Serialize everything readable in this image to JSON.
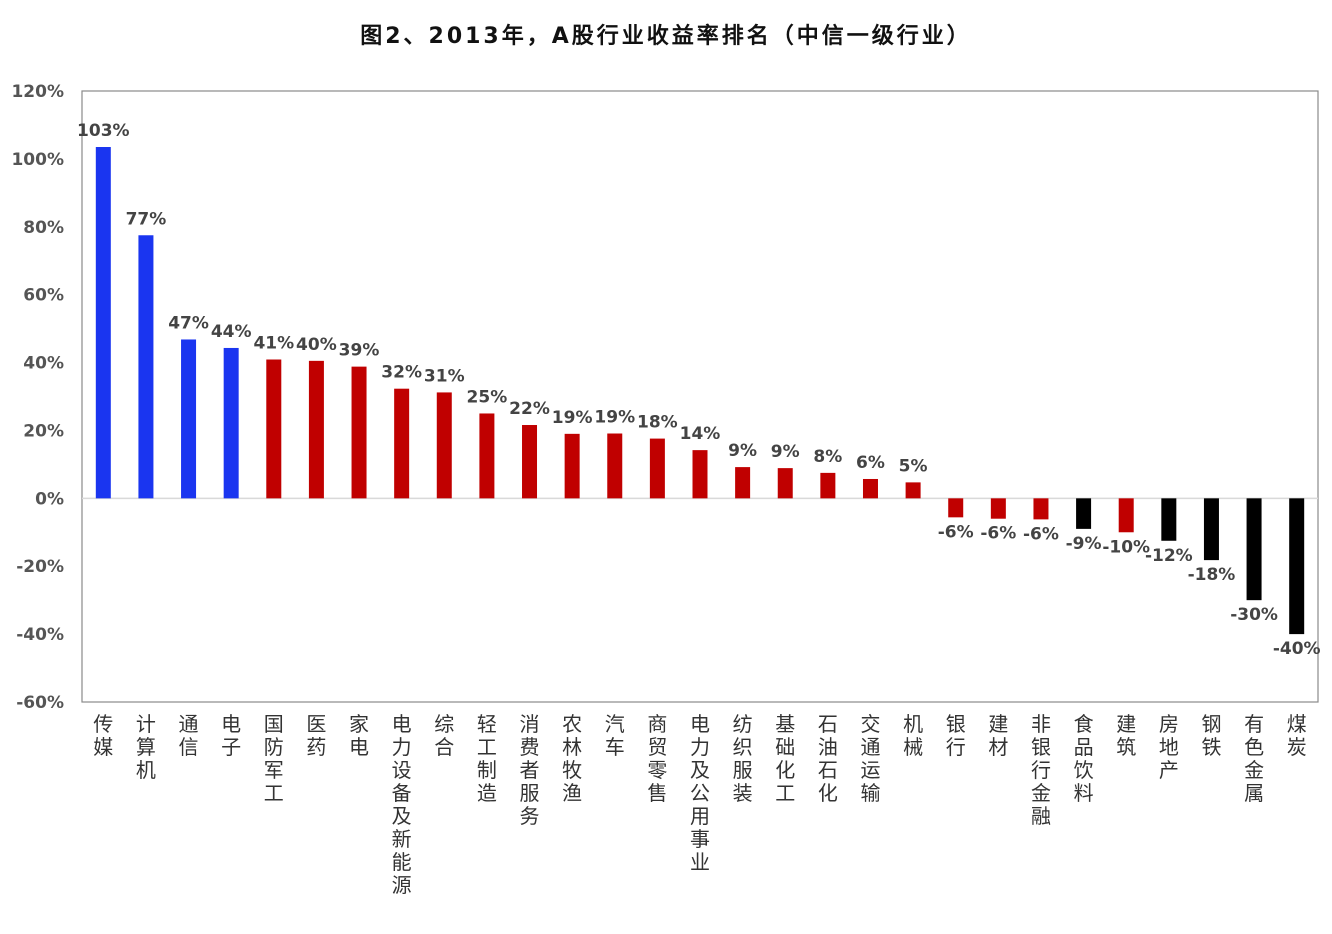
{
  "chart_data": {
    "type": "bar",
    "title": "图2、2013年，A股行业收益率排名（中信一级行业）",
    "xlabel": "",
    "ylabel": "",
    "ylim": [
      -60,
      120
    ],
    "ytick_step": 20,
    "y_unit": "%",
    "grid": false,
    "legend": "none",
    "colors": {
      "blue": "#1a35f0",
      "red": "#c00000",
      "black": "#000000"
    },
    "categories": [
      "传媒",
      "计算机",
      "通信",
      "电子",
      "国防军工",
      "医药",
      "家电",
      "电力设备及新能源",
      "综合",
      "轻工制造",
      "消费者服务",
      "农林牧渔",
      "汽车",
      "商贸零售",
      "电力及公用事业",
      "纺织服装",
      "基础化工",
      "石油石化",
      "交通运输",
      "机械",
      "银行",
      "建材",
      "非银行金融",
      "食品饮料",
      "建筑",
      "房地产",
      "钢铁",
      "有色金属",
      "煤炭"
    ],
    "values": [
      103.5,
      77.5,
      46.8,
      44.3,
      40.9,
      40.5,
      38.8,
      32.3,
      31.2,
      25.0,
      21.6,
      19.0,
      19.1,
      17.6,
      14.2,
      9.2,
      8.9,
      7.5,
      5.7,
      4.7,
      -5.6,
      -6.0,
      -6.2,
      -9.0,
      -10.0,
      -12.5,
      -18.2,
      -30.0,
      -40.0
    ],
    "value_labels": [
      "103%",
      "77%",
      "47%",
      "44%",
      "41%",
      "40%",
      "39%",
      "32%",
      "31%",
      "25%",
      "22%",
      "19%",
      "19%",
      "18%",
      "14%",
      "9%",
      "9%",
      "8%",
      "6%",
      "5%",
      "-6%",
      "-6%",
      "-6%",
      "-9%",
      "-10%",
      "-12%",
      "-18%",
      "-30%",
      "-40%"
    ],
    "bar_colors": [
      "blue",
      "blue",
      "blue",
      "blue",
      "red",
      "red",
      "red",
      "red",
      "red",
      "red",
      "red",
      "red",
      "red",
      "red",
      "red",
      "red",
      "red",
      "red",
      "red",
      "red",
      "red",
      "red",
      "red",
      "black",
      "red",
      "black",
      "black",
      "black",
      "black"
    ]
  }
}
